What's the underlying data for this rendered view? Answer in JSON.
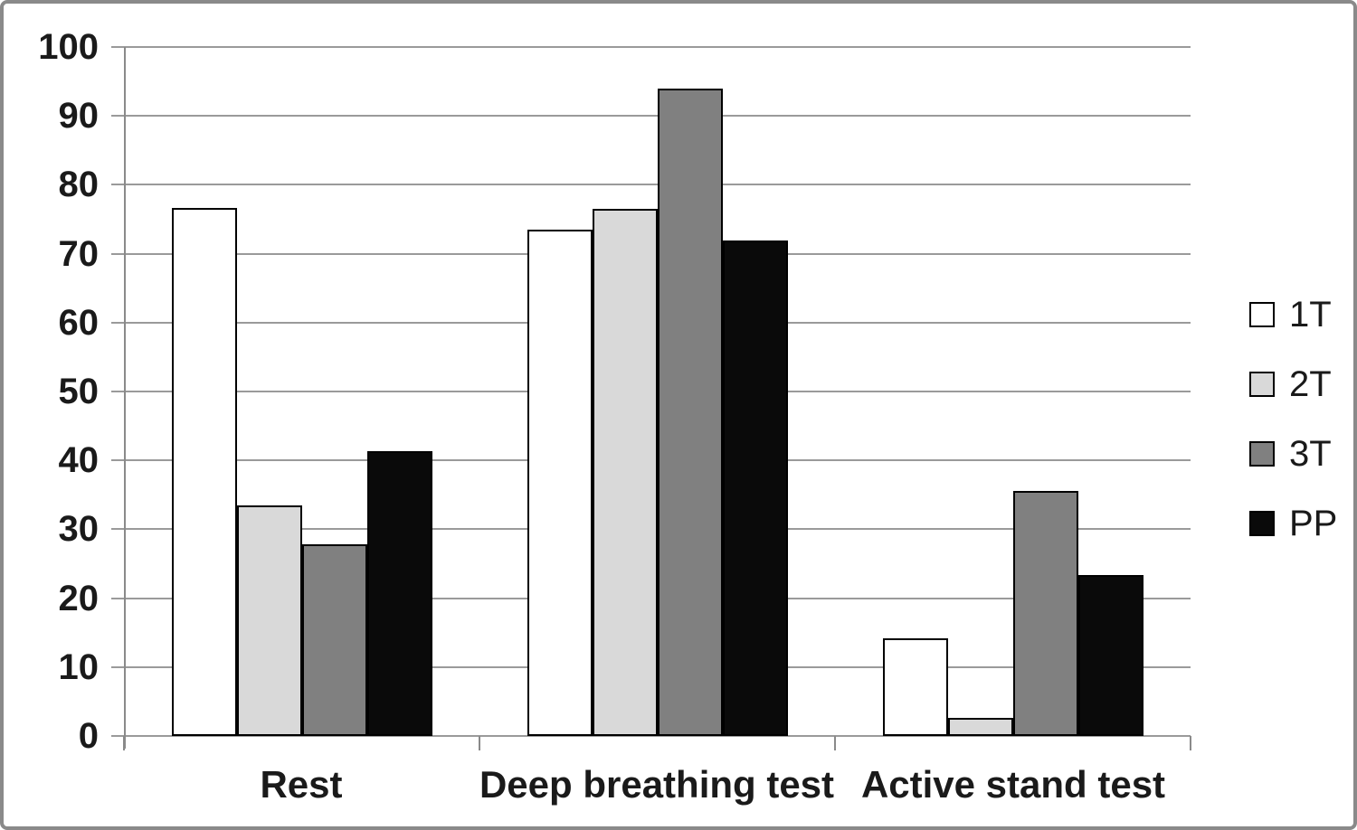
{
  "chart_data": {
    "type": "bar",
    "title": "",
    "xlabel": "",
    "ylabel": "",
    "categories": [
      "Rest",
      "Deep breathing test",
      "Active stand test"
    ],
    "series": [
      {
        "name": "1T",
        "color": "#ffffff",
        "values": [
          76.7,
          73.5,
          14.2
        ]
      },
      {
        "name": "2T",
        "color": "#d9d9d9",
        "values": [
          33.4,
          76.5,
          2.6
        ]
      },
      {
        "name": "3T",
        "color": "#808080",
        "values": [
          27.8,
          94.0,
          35.6
        ]
      },
      {
        "name": "PP",
        "color": "#0a0a0a",
        "values": [
          41.4,
          71.9,
          23.4
        ]
      }
    ],
    "ylim": [
      0,
      100
    ],
    "yticks": [
      0,
      10,
      20,
      30,
      40,
      50,
      60,
      70,
      80,
      90,
      100
    ],
    "grid": "horizontal",
    "legend_position": "right",
    "bar_border_color": "#000000",
    "gridline_color": "#9a9a9a",
    "axis_color": "#8a8a8a"
  }
}
